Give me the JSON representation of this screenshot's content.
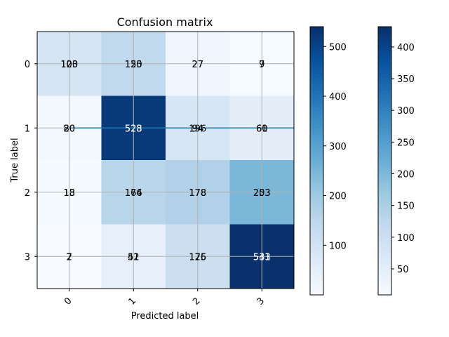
{
  "chart_data": {
    "type": "heatmap",
    "title": "Confusion matrix",
    "xlabel": "Predicted label",
    "ylabel": "True label",
    "x_ticks": [
      "0",
      "1",
      "2",
      "3"
    ],
    "y_ticks": [
      "0",
      "1",
      "2",
      "3"
    ],
    "grid": true,
    "colormap": "Blues",
    "cell_values": [
      [
        100,
        150,
        27,
        9
      ],
      [
        20,
        523,
        94,
        60
      ],
      [
        13,
        164,
        178,
        253
      ],
      [
        7,
        51,
        125,
        541
      ]
    ],
    "overlay_text": [
      [
        [
          "100",
          "123"
        ],
        [
          "150",
          "125"
        ],
        [
          "27",
          "27"
        ],
        [
          "9",
          "7"
        ]
      ],
      [
        [
          "20",
          "80"
        ],
        [
          "523",
          "528"
        ],
        [
          "94",
          "196"
        ],
        [
          "60",
          "61"
        ]
      ],
      [
        [
          "13",
          "18"
        ],
        [
          "164",
          "176"
        ],
        [
          "178",
          "178"
        ],
        [
          "253",
          "203"
        ]
      ],
      [
        [
          "7",
          "2"
        ],
        [
          "51",
          "42"
        ],
        [
          "125",
          "176"
        ],
        [
          "541",
          "533"
        ]
      ]
    ],
    "colorbars": [
      {
        "ticks": [
          100,
          200,
          300,
          400,
          500
        ],
        "range": [
          0,
          540
        ]
      },
      {
        "ticks": [
          50,
          100,
          150,
          200,
          250,
          300,
          350,
          400
        ],
        "range": [
          9,
          432
        ]
      }
    ],
    "line_y": 1.0
  }
}
